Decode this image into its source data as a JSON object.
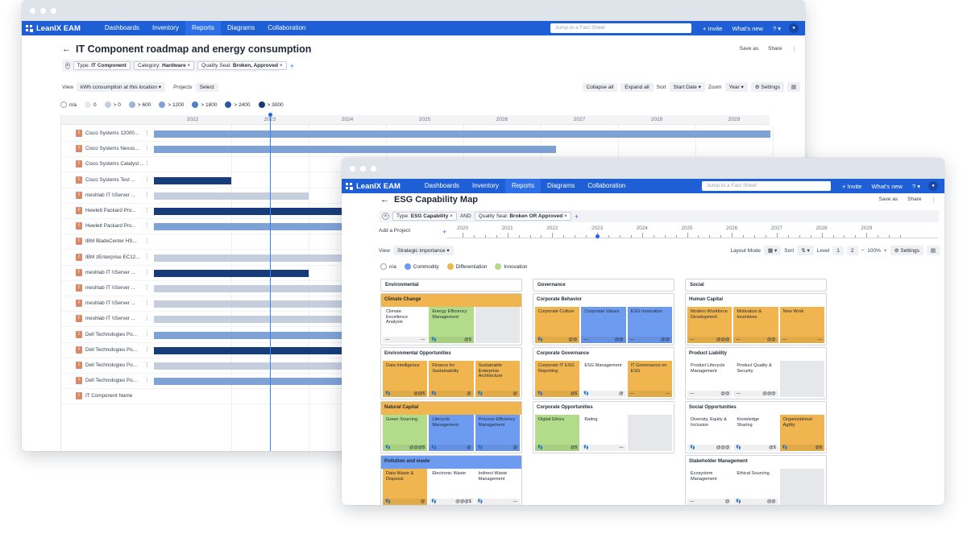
{
  "colors": {
    "nav": "#1f5fd6",
    "commodity": "#6d9bf0",
    "differentiation": "#f0b54e",
    "innovation": "#b3dc8a",
    "neutral": "#ffffff",
    "bar_light": "#c4cedd",
    "bar_mid": "#7fa2d6",
    "bar_dark": "#173c7a"
  },
  "window1": {
    "brand": "LeanIX EAM",
    "nav": [
      "Dashboards",
      "Inventory",
      "Reports",
      "Diagrams",
      "Collaboration"
    ],
    "search_placeholder": "Jump to a Fact Sheet",
    "invite": "+ Invite",
    "whats_new": "What's new",
    "help": "? ▾",
    "title": "IT Component roadmap and energy consumption",
    "save_as": "Save as",
    "share": "Share",
    "more": "⋮",
    "filters": [
      {
        "key": "Type:",
        "value": "IT Component",
        "x": ""
      },
      {
        "key": "Category:",
        "value": "Hardware",
        "x": "×"
      },
      {
        "key": "Quality Seal:",
        "value": "Broken, Approved",
        "x": "×"
      }
    ],
    "view_label": "View",
    "view_value": "kWh consumption at this location ▾",
    "projects_label": "Projects",
    "projects_value": "Select",
    "collapse_all": "Collapse all",
    "expand_all": "Expand all",
    "sort_label": "Sort",
    "sort_value": "Start Date ▾",
    "zoom_label": "Zoom",
    "zoom_value": "Year ▾",
    "settings": "⚙ Settings",
    "legend": [
      {
        "label": "n/a",
        "color": "#ffffff"
      },
      {
        "label": "0",
        "color": "#e6e9ee"
      },
      {
        "label": "> 0",
        "color": "#c4cedd"
      },
      {
        "label": "> 600",
        "color": "#9db4d8"
      },
      {
        "label": "> 1200",
        "color": "#7fa2d6"
      },
      {
        "label": "> 1800",
        "color": "#4f7fc8"
      },
      {
        "label": "> 2400",
        "color": "#2a58a3"
      },
      {
        "label": "> 3000",
        "color": "#173c7a"
      }
    ],
    "years": [
      "2022",
      "2023",
      "2024",
      "2025",
      "2026",
      "2027",
      "2028",
      "2029"
    ],
    "rows": [
      {
        "name": "Cisco Systems 12000...",
        "start": 2021.5,
        "end": 2029.5,
        "color": "#7fa2d6"
      },
      {
        "name": "Cisco Systems Nexus...",
        "start": 2021.5,
        "end": 2026.7,
        "color": "#7fa2d6"
      },
      {
        "name": "Cisco Systems Catalyst ...",
        "start": null,
        "end": null,
        "color": ""
      },
      {
        "name": "Cisco Systems Test ...",
        "start": 2021.5,
        "end": 2022.5,
        "color": "#173c7a"
      },
      {
        "name": "meshlab IT \\\\Server ...",
        "start": 2021.5,
        "end": 2023.5,
        "color": "#c4cedd"
      },
      {
        "name": "Hewlett Packard Pro...",
        "start": 2021.5,
        "end": 2029.5,
        "color": "#173c7a"
      },
      {
        "name": "Hewlett Packard Pro...",
        "start": 2021.5,
        "end": 2029.5,
        "color": "#7fa2d6"
      },
      {
        "name": "IBM BladeCenter HS...",
        "start": null,
        "end": null,
        "color": ""
      },
      {
        "name": "IBM zEnterprise EC12...",
        "start": 2021.5,
        "end": 2029.5,
        "color": "#c4cedd"
      },
      {
        "name": "meshlab IT \\\\Server ...",
        "start": 2021.5,
        "end": 2023.5,
        "color": "#173c7a"
      },
      {
        "name": "meshlab IT \\\\Server ...",
        "start": 2021.5,
        "end": 2029.5,
        "color": "#c4cedd"
      },
      {
        "name": "meshlab IT \\\\Server ...",
        "start": 2021.5,
        "end": 2029.5,
        "color": "#c4cedd"
      },
      {
        "name": "meshlab IT \\\\Server ...",
        "start": 2021.5,
        "end": 2029.5,
        "color": "#c4cedd"
      },
      {
        "name": "Dell Technologies Po...",
        "start": 2021.5,
        "end": 2029.5,
        "color": "#7fa2d6"
      },
      {
        "name": "Dell Technologies Po...",
        "start": 2021.5,
        "end": 2029.5,
        "color": "#173c7a"
      },
      {
        "name": "Dell Technologies Po...",
        "start": 2021.5,
        "end": 2029.5,
        "color": "#c4cedd"
      },
      {
        "name": "Dell Technologies Po...",
        "start": 2021.5,
        "end": 2029.5,
        "color": "#7fa2d6"
      },
      {
        "name": "IT Component Name",
        "start": null,
        "end": null,
        "color": ""
      }
    ],
    "row_menu": "⋮",
    "row_icon": "I",
    "today": 2023.0
  },
  "window2": {
    "brand": "LeanIX EAM",
    "nav": [
      "Dashboards",
      "Inventory",
      "Reports",
      "Diagrams",
      "Collaboration"
    ],
    "search_placeholder": "Jump to a Fact Sheet",
    "invite": "+ Invite",
    "whats_new": "What's new",
    "help": "? ▾",
    "title": "ESG Capability Map",
    "save_as": "Save as",
    "share": "Share",
    "more": "⋮",
    "filter_type_key": "Type:",
    "filter_type_value": "ESG Capability",
    "filter_and": "AND",
    "filter_qs_key": "Quality Seal:",
    "filter_qs_value": "Broken OR Approved",
    "add_project": "Add a Project",
    "add_plus": "+",
    "years": [
      "2020",
      "2021",
      "2022",
      "2023",
      "2024",
      "2025",
      "2026",
      "2027",
      "2028",
      "2029"
    ],
    "view_label": "View",
    "view_value": "Strategic importance ▾",
    "layout_mode": "Layout Mode",
    "layout_value": "▦ ▾",
    "sort_label": "Sort",
    "sort_value": "⇅ ▾",
    "level_label": "Level",
    "level_1": "1",
    "level_2": "2",
    "zoom_minus": "−",
    "zoom_value": "100%",
    "zoom_plus": "+",
    "settings": "⚙ Settings",
    "legend": [
      {
        "label": "n/a",
        "color": "#ffffff"
      },
      {
        "label": "Commodity",
        "color": "#6d9bf0"
      },
      {
        "label": "Differentiation",
        "color": "#f0b54e"
      },
      {
        "label": "Innovation",
        "color": "#b3dc8a"
      }
    ],
    "columns": [
      {
        "name": "Environmental",
        "groups": [
          {
            "name": "Climate Change",
            "head_color": "#f0b54e",
            "cards": [
              {
                "label": "Climate Excellence Analysis",
                "color": "#ffffff",
                "foot_l": "—",
                "foot_r": "—"
              },
              {
                "label": "Energy Efficiency Management",
                "color": "#b3dc8a",
                "foot_l": "👣",
                "foot_r": "@$"
              },
              {
                "label": "",
                "color": "#e5e7eb",
                "foot_l": "",
                "foot_r": ""
              }
            ]
          },
          {
            "name": "Environmental Opportunities",
            "head_color": "#ffffff",
            "cards": [
              {
                "label": "Data Intelligence",
                "color": "#f0b54e",
                "foot_l": "👣",
                "foot_r": "@@$"
              },
              {
                "label": "Finance for Sustainability",
                "color": "#f0b54e",
                "foot_l": "👣",
                "foot_r": "@"
              },
              {
                "label": "Sustainable Enterprise Architecture",
                "color": "#f0b54e",
                "foot_l": "👣",
                "foot_r": "@"
              }
            ]
          },
          {
            "name": "Natural Capital",
            "head_color": "#f0b54e",
            "cards": [
              {
                "label": "Green Sourcing",
                "color": "#b3dc8a",
                "foot_l": "👣",
                "foot_r": "@@@$"
              },
              {
                "label": "Lifecycle Management",
                "color": "#6d9bf0",
                "foot_l": "👣",
                "foot_r": "@"
              },
              {
                "label": "Process Efficiency Management",
                "color": "#6d9bf0",
                "foot_l": "👣",
                "foot_r": "@"
              }
            ]
          },
          {
            "name": "Pollution and waste",
            "head_color": "#6d9bf0",
            "cards": [
              {
                "label": "Data Waste & Disposal",
                "color": "#f0b54e",
                "foot_l": "👣",
                "foot_r": "@"
              },
              {
                "label": "Electronic Waste",
                "color": "#ffffff",
                "foot_l": "👣",
                "foot_r": "@@@$"
              },
              {
                "label": "Indirect Waste Management",
                "color": "#ffffff",
                "foot_l": "👣",
                "foot_r": "—"
              }
            ]
          }
        ]
      },
      {
        "name": "Governance",
        "groups": [
          {
            "name": "Corporate Behavior",
            "head_color": "#ffffff",
            "cards": [
              {
                "label": "Corporate Culture",
                "color": "#f0b54e",
                "foot_l": "👣",
                "foot_r": "@@"
              },
              {
                "label": "Corporate Values",
                "color": "#6d9bf0",
                "foot_l": "—",
                "foot_r": "@@"
              },
              {
                "label": "ESG Innovation",
                "color": "#6d9bf0",
                "foot_l": "—",
                "foot_r": "@@"
              }
            ]
          },
          {
            "name": "Corporate Governance",
            "head_color": "#ffffff",
            "cards": [
              {
                "label": "Corporate IT ESG Reporting",
                "color": "#f0b54e",
                "foot_l": "👣",
                "foot_r": "@$"
              },
              {
                "label": "ESG Management",
                "color": "#ffffff",
                "foot_l": "👣",
                "foot_r": "@"
              },
              {
                "label": "IT Governance on ESG",
                "color": "#f0b54e",
                "foot_l": "—",
                "foot_r": "—"
              }
            ]
          },
          {
            "name": "Corporate Opportunities",
            "head_color": "#ffffff",
            "cards": [
              {
                "label": "Digital Ethics",
                "color": "#b3dc8a",
                "foot_l": "👣",
                "foot_r": "@$"
              },
              {
                "label": "Rating",
                "color": "#ffffff",
                "foot_l": "👣",
                "foot_r": "—"
              },
              {
                "label": "",
                "color": "#e5e7eb",
                "foot_l": "",
                "foot_r": ""
              }
            ]
          }
        ]
      },
      {
        "name": "Social",
        "groups": [
          {
            "name": "Human Capital",
            "head_color": "#ffffff",
            "cards": [
              {
                "label": "Modern Workforce Development",
                "color": "#f0b54e",
                "foot_l": "—",
                "foot_r": "@@@"
              },
              {
                "label": "Motivation & Incentives",
                "color": "#f0b54e",
                "foot_l": "—",
                "foot_r": "@@"
              },
              {
                "label": "New Work",
                "color": "#f0b54e",
                "foot_l": "—",
                "foot_r": "—"
              }
            ]
          },
          {
            "name": "Product Liability",
            "head_color": "#ffffff",
            "cards": [
              {
                "label": "Product Lifecycle Management",
                "color": "#ffffff",
                "foot_l": "—",
                "foot_r": "@@"
              },
              {
                "label": "Product Quality & Security",
                "color": "#ffffff",
                "foot_l": "—",
                "foot_r": "@@@"
              },
              {
                "label": "",
                "color": "#e5e7eb",
                "foot_l": "",
                "foot_r": ""
              }
            ]
          },
          {
            "name": "Social Opportunities",
            "head_color": "#ffffff",
            "cards": [
              {
                "label": "Diversity, Equity & Inclusion",
                "color": "#ffffff",
                "foot_l": "👣",
                "foot_r": "@@@"
              },
              {
                "label": "Knowledge Sharing",
                "color": "#ffffff",
                "foot_l": "👣",
                "foot_r": "@$"
              },
              {
                "label": "Organizational Agility",
                "color": "#f0b54e",
                "foot_l": "👣",
                "foot_r": "@$"
              }
            ]
          },
          {
            "name": "Stakeholder Management",
            "head_color": "#ffffff",
            "cards": [
              {
                "label": "Ecosystem Management",
                "color": "#ffffff",
                "foot_l": "—",
                "foot_r": "@"
              },
              {
                "label": "Ethical Sourcing",
                "color": "#ffffff",
                "foot_l": "👣",
                "foot_r": "@@"
              },
              {
                "label": "",
                "color": "#e5e7eb",
                "foot_l": "",
                "foot_r": ""
              }
            ]
          }
        ]
      }
    ]
  }
}
